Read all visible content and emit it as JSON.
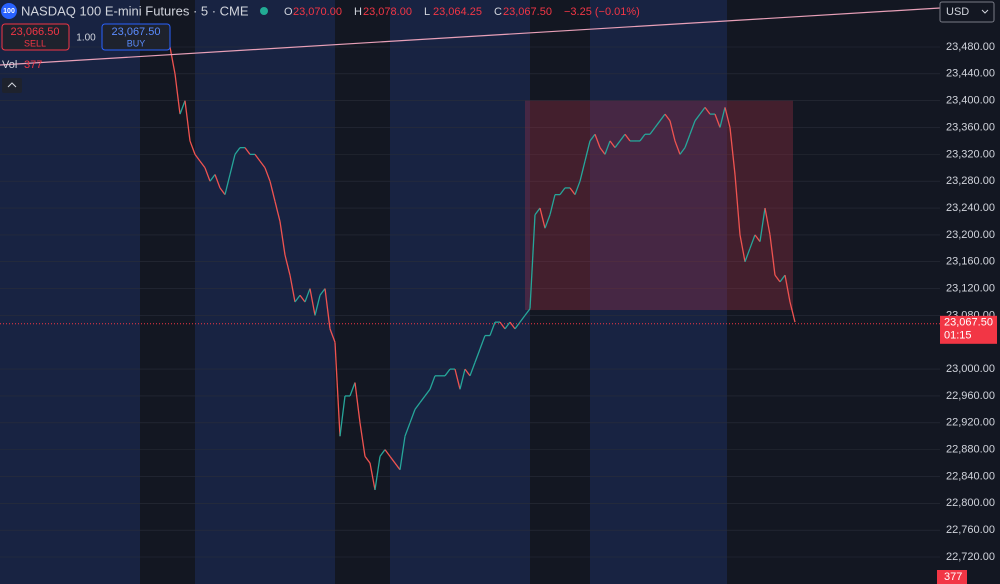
{
  "header": {
    "icon": "100",
    "symbol": "NASDAQ 100 E-mini Futures · 5 · CME",
    "ohlc": [
      {
        "key": "O",
        "value": "23,070.00"
      },
      {
        "key": "H",
        "value": "23,078.00"
      },
      {
        "key": "L",
        "value": "23,064.25"
      },
      {
        "key": "C",
        "value": "23,067.50"
      }
    ],
    "change": "−3.25 (−0.01%)"
  },
  "trade": {
    "sell_price": "23,066.50",
    "sell": "SELL",
    "qty": "1.00",
    "buy_price": "23,067.50",
    "buy": "BUY"
  },
  "volume": {
    "label": "Vol",
    "value": "377"
  },
  "currency": "USD",
  "price_axis": {
    "ylim": [
      22720,
      23480
    ],
    "ticks": [
      {
        "value": 23480,
        "label": "23,480.00"
      },
      {
        "value": 23440,
        "label": "23,440.00"
      },
      {
        "value": 23400,
        "label": "23,400.00"
      },
      {
        "value": 23360,
        "label": "23,360.00"
      },
      {
        "value": 23320,
        "label": "23,320.00"
      },
      {
        "value": 23280,
        "label": "23,280.00"
      },
      {
        "value": 23240,
        "label": "23,240.00"
      },
      {
        "value": 23200,
        "label": "23,200.00"
      },
      {
        "value": 23160,
        "label": "23,160.00"
      },
      {
        "value": 23120,
        "label": "23,120.00"
      },
      {
        "value": 23080,
        "label": "23,080.00"
      },
      {
        "value": 23000,
        "label": "23,000.00"
      },
      {
        "value": 22960,
        "label": "22,960.00"
      },
      {
        "value": 22920,
        "label": "22,920.00"
      },
      {
        "value": 22880,
        "label": "22,880.00"
      },
      {
        "value": 22840,
        "label": "22,840.00"
      },
      {
        "value": 22800,
        "label": "22,800.00"
      },
      {
        "value": 22760,
        "label": "22,760.00"
      },
      {
        "value": 22720,
        "label": "22,720.00"
      }
    ]
  },
  "last_price": {
    "value": 23067.5,
    "label": "23,067.50",
    "countdown": "01:15"
  },
  "volume_badge": "377",
  "zone": {
    "top": 23400,
    "bottom": 23088
  },
  "prices": [
    23480,
    23440,
    23380,
    23400,
    23340,
    23320,
    23310,
    23300,
    23280,
    23290,
    23270,
    23260,
    23290,
    23320,
    23330,
    23330,
    23320,
    23320,
    23310,
    23300,
    23280,
    23250,
    23220,
    23170,
    23140,
    23100,
    23110,
    23100,
    23120,
    23080,
    23110,
    23120,
    23060,
    23040,
    22900,
    22960,
    22960,
    22980,
    22920,
    22870,
    22860,
    22820,
    22870,
    22880,
    22870,
    22860,
    22850,
    22900,
    22920,
    22940,
    22950,
    22960,
    22970,
    22990,
    22990,
    22990,
    23000,
    23000,
    22970,
    23000,
    22990,
    23010,
    23030,
    23050,
    23050,
    23070,
    23070,
    23060,
    23070,
    23060,
    23070,
    23080,
    23090,
    23230,
    23240,
    23210,
    23230,
    23260,
    23260,
    23270,
    23270,
    23260,
    23280,
    23310,
    23340,
    23350,
    23330,
    23320,
    23340,
    23330,
    23340,
    23350,
    23340,
    23340,
    23340,
    23350,
    23350,
    23360,
    23370,
    23380,
    23370,
    23340,
    23320,
    23330,
    23350,
    23370,
    23380,
    23390,
    23380,
    23380,
    23360,
    23390,
    23360,
    23290,
    23200,
    23160,
    23180,
    23200,
    23190,
    23240,
    23200,
    23140,
    23130,
    23140,
    23100,
    23070
  ]
}
